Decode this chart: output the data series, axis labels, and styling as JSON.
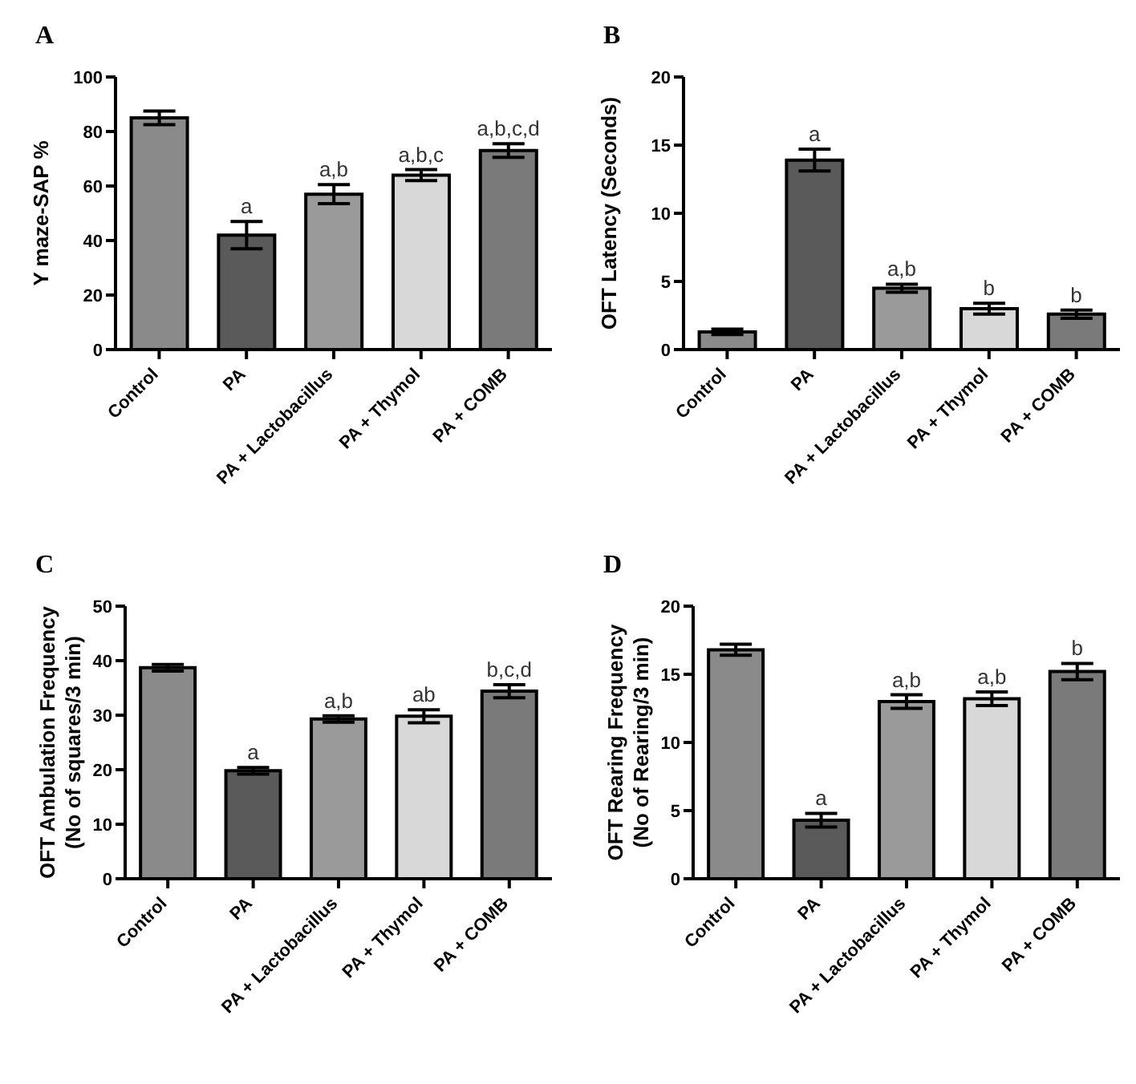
{
  "chart_data": [
    {
      "type": "bar",
      "title": "A",
      "ylabel": "Y maze-SAP %",
      "categories": [
        "Control",
        "PA",
        "PA + Lactobacillus",
        "PA + Thymol",
        "PA + COMB"
      ],
      "values": [
        85,
        42,
        57,
        64,
        73
      ],
      "errors": [
        2.5,
        5,
        3.5,
        2,
        2.5
      ],
      "colors": [
        "#8a8a8a",
        "#5a5a5a",
        "#9a9a9a",
        "#d8d8d8",
        "#7a7a7a"
      ],
      "ylim": [
        0,
        100
      ],
      "yticks": [
        0,
        20,
        40,
        60,
        80,
        100
      ],
      "annotations": [
        {
          "text": "a",
          "x": "PA",
          "y": 47
        },
        {
          "text": "a,b",
          "x": "PA + Lactobacillus",
          "y": 60.5
        },
        {
          "text": "a,b,c",
          "x": "PA + Thymol",
          "y": 66
        },
        {
          "text": "a,b,c,d",
          "x": "PA + COMB",
          "y": 75.5
        }
      ]
    },
    {
      "type": "bar",
      "title": "B",
      "ylabel": "OFT Latency (Seconds)",
      "categories": [
        "Control",
        "PA",
        "PA + Lactobacillus",
        "PA + Thymol",
        "PA + COMB"
      ],
      "values": [
        1.3,
        13.9,
        4.5,
        3.0,
        2.6
      ],
      "errors": [
        0.2,
        0.8,
        0.3,
        0.4,
        0.3
      ],
      "colors": [
        "#8a8a8a",
        "#5a5a5a",
        "#9a9a9a",
        "#d8d8d8",
        "#7a7a7a"
      ],
      "ylim": [
        0,
        20
      ],
      "yticks": [
        0,
        5,
        10,
        15,
        20
      ],
      "annotations": [
        {
          "text": "a",
          "x": "PA",
          "y": 14.7
        },
        {
          "text": "a,b",
          "x": "PA + Lactobacillus",
          "y": 4.8
        },
        {
          "text": "b",
          "x": "PA + Thymol",
          "y": 3.4
        },
        {
          "text": "b",
          "x": "PA + COMB",
          "y": 2.9
        }
      ]
    },
    {
      "type": "bar",
      "title": "C",
      "ylabel": "OFT Ambulation Frequency\n(No of squares/3 min)",
      "categories": [
        "Control",
        "PA",
        "PA + Lactobacillus",
        "PA + Thymol",
        "PA + COMB"
      ],
      "values": [
        38.7,
        19.8,
        29.3,
        29.8,
        34.4
      ],
      "errors": [
        0.6,
        0.6,
        0.6,
        1.2,
        1.2
      ],
      "colors": [
        "#8a8a8a",
        "#5a5a5a",
        "#9a9a9a",
        "#d8d8d8",
        "#7a7a7a"
      ],
      "ylim": [
        0,
        50
      ],
      "yticks": [
        0,
        10,
        20,
        30,
        40,
        50
      ],
      "annotations": [
        {
          "text": "a",
          "x": "PA",
          "y": 20.4
        },
        {
          "text": "a,b",
          "x": "PA + Lactobacillus",
          "y": 29.9
        },
        {
          "text": "ab",
          "x": "PA + Thymol",
          "y": 31
        },
        {
          "text": "b,c,d",
          "x": "PA + COMB",
          "y": 35.6
        }
      ]
    },
    {
      "type": "bar",
      "title": "D",
      "ylabel": "OFT Rearing Frequency\n(No of Rearing/3 min)",
      "categories": [
        "Control",
        "PA",
        "PA + Lactobacillus",
        "PA + Thymol",
        "PA + COMB"
      ],
      "values": [
        16.8,
        4.3,
        13.0,
        13.2,
        15.2
      ],
      "errors": [
        0.4,
        0.5,
        0.5,
        0.5,
        0.6
      ],
      "colors": [
        "#8a8a8a",
        "#5a5a5a",
        "#9a9a9a",
        "#d8d8d8",
        "#7a7a7a"
      ],
      "ylim": [
        0,
        20
      ],
      "yticks": [
        0,
        5,
        10,
        15,
        20
      ],
      "annotations": [
        {
          "text": "a",
          "x": "PA",
          "y": 4.8
        },
        {
          "text": "a,b",
          "x": "PA + Lactobacillus",
          "y": 13.5
        },
        {
          "text": "a,b",
          "x": "PA + Thymol",
          "y": 13.7
        },
        {
          "text": "b",
          "x": "PA + COMB",
          "y": 15.8
        }
      ]
    }
  ]
}
